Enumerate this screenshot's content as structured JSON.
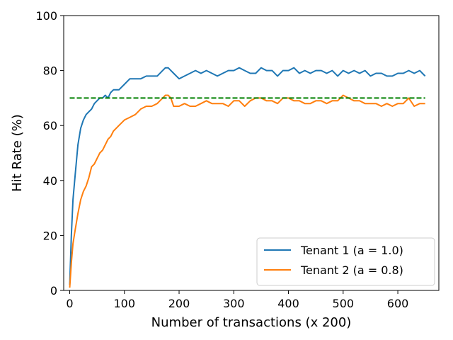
{
  "chart_data": {
    "type": "line",
    "title": "",
    "xlabel": "Number of transactions (x 200)",
    "ylabel": "Hit Rate (%)",
    "xlim": [
      -11,
      675
    ],
    "ylim": [
      0,
      100
    ],
    "xticks": [
      "0",
      "100",
      "200",
      "300",
      "400",
      "500",
      "600"
    ],
    "yticks": [
      "0",
      "20",
      "40",
      "60",
      "80",
      "100"
    ],
    "grid": false,
    "legend_position": "lower-right",
    "series": [
      {
        "name": "Tenant 1 (a = 1.0)",
        "color": "#1f77b4",
        "x": [
          0,
          3,
          6,
          10,
          15,
          20,
          25,
          30,
          35,
          40,
          45,
          50,
          55,
          60,
          65,
          70,
          75,
          80,
          85,
          90,
          100,
          110,
          120,
          130,
          140,
          150,
          160,
          170,
          175,
          180,
          185,
          190,
          200,
          210,
          220,
          230,
          240,
          250,
          260,
          270,
          280,
          290,
          300,
          310,
          320,
          330,
          340,
          350,
          360,
          370,
          380,
          390,
          400,
          410,
          420,
          430,
          440,
          450,
          460,
          470,
          480,
          490,
          500,
          510,
          520,
          530,
          540,
          550,
          560,
          570,
          580,
          590,
          600,
          610,
          620,
          630,
          640,
          645,
          650
        ],
        "y": [
          2,
          20,
          33,
          42,
          53,
          59,
          62,
          64,
          65,
          66,
          68,
          69,
          70,
          70,
          71,
          70,
          72,
          73,
          73,
          73,
          75,
          77,
          77,
          77,
          78,
          78,
          78,
          80,
          81,
          81,
          80,
          79,
          77,
          78,
          79,
          80,
          79,
          80,
          79,
          78,
          79,
          80,
          80,
          81,
          80,
          79,
          79,
          81,
          80,
          80,
          78,
          80,
          80,
          81,
          79,
          80,
          79,
          80,
          80,
          79,
          80,
          78,
          80,
          79,
          80,
          79,
          80,
          78,
          79,
          79,
          78,
          78,
          79,
          79,
          80,
          79,
          80,
          79,
          78
        ]
      },
      {
        "name": "Tenant 2 (a = 0.8)",
        "color": "#ff7f0e",
        "x": [
          0,
          3,
          6,
          10,
          15,
          20,
          25,
          30,
          35,
          40,
          45,
          50,
          55,
          60,
          65,
          70,
          75,
          80,
          85,
          90,
          95,
          100,
          110,
          120,
          130,
          140,
          150,
          160,
          170,
          175,
          180,
          185,
          190,
          200,
          210,
          220,
          230,
          240,
          250,
          260,
          270,
          280,
          290,
          300,
          310,
          320,
          330,
          340,
          350,
          360,
          370,
          380,
          390,
          400,
          410,
          420,
          430,
          440,
          450,
          460,
          470,
          480,
          490,
          500,
          510,
          520,
          530,
          540,
          550,
          560,
          570,
          580,
          590,
          600,
          610,
          620,
          630,
          640,
          650
        ],
        "y": [
          1,
          10,
          17,
          22,
          28,
          33,
          36,
          38,
          41,
          45,
          46,
          48,
          50,
          51,
          53,
          55,
          56,
          58,
          59,
          60,
          61,
          62,
          63,
          64,
          66,
          67,
          67,
          68,
          70,
          71,
          71,
          70,
          67,
          67,
          68,
          67,
          67,
          68,
          69,
          68,
          68,
          68,
          67,
          69,
          69,
          67,
          69,
          70,
          70,
          69,
          69,
          68,
          70,
          70,
          69,
          69,
          68,
          68,
          69,
          69,
          68,
          69,
          69,
          71,
          70,
          69,
          69,
          68,
          68,
          68,
          67,
          68,
          67,
          68,
          68,
          70,
          67,
          68,
          68
        ]
      },
      {
        "name": "",
        "color": "#008000",
        "style": "dashed",
        "x": [
          0,
          650
        ],
        "y": [
          70,
          70
        ]
      }
    ]
  }
}
